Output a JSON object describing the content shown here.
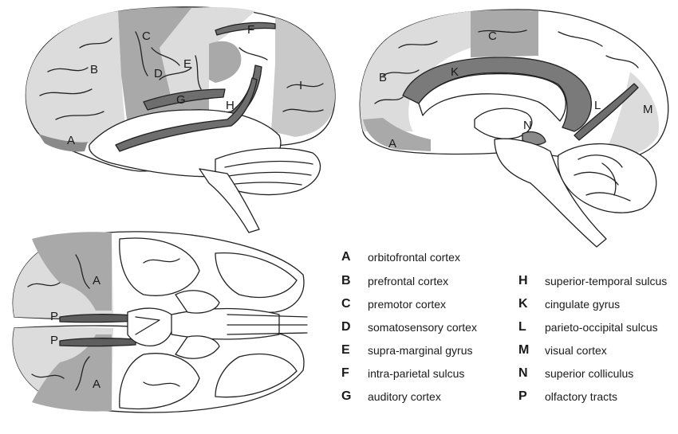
{
  "diagram_labels": {
    "lateral": [
      "C",
      "F",
      "B",
      "D",
      "E",
      "I",
      "G",
      "H",
      "A"
    ],
    "medial": [
      "C",
      "K",
      "B",
      "L",
      "M",
      "N",
      "A"
    ],
    "ventral": [
      "A",
      "P",
      "P",
      "A"
    ]
  },
  "legend": {
    "left": [
      {
        "key": "A",
        "text": "orbitofrontal cortex"
      },
      {
        "key": "B",
        "text": "prefrontal cortex"
      },
      {
        "key": "C",
        "text": "premotor cortex"
      },
      {
        "key": "D",
        "text": "somatosensory cortex"
      },
      {
        "key": "E",
        "text": "supra-marginal gyrus"
      },
      {
        "key": "F",
        "text": "intra-parietal sulcus"
      },
      {
        "key": "G",
        "text": "auditory cortex"
      }
    ],
    "right": [
      {
        "key": "H",
        "text": "superior-temporal sulcus"
      },
      {
        "key": "K",
        "text": "cingulate gyrus"
      },
      {
        "key": "L",
        "text": "parieto-occipital sulcus"
      },
      {
        "key": "M",
        "text": "visual cortex"
      },
      {
        "key": "N",
        "text": "superior colliculus"
      },
      {
        "key": "P",
        "text": "olfactory tracts"
      }
    ]
  },
  "colors": {
    "light_region": "#dcdcdc",
    "mid_region": "#a9a9a9",
    "dark_region": "#6e6e6e",
    "outline": "#222222"
  }
}
